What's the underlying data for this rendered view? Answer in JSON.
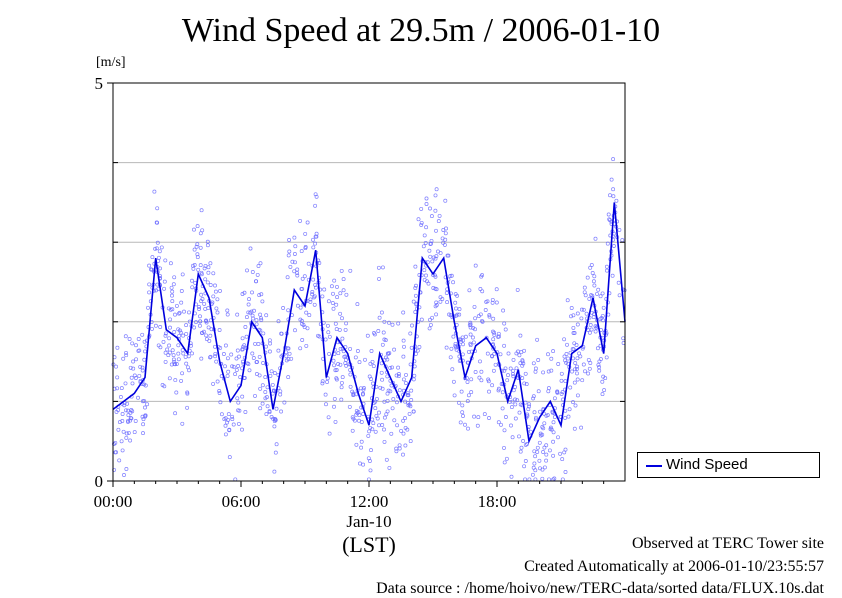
{
  "chart_data": {
    "type": "line",
    "title": "Wind Speed at 29.5m / 2006-01-10",
    "ylabel": "[m/s]",
    "xlabel": "(LST)",
    "x_date_label": "Jan-10",
    "ylim": [
      0,
      5
    ],
    "xlim_hours": [
      0,
      24
    ],
    "yticks": [
      "0",
      "5"
    ],
    "xticks": [
      "00:00",
      "06:00",
      "12:00",
      "18:00"
    ],
    "grid": true,
    "legend_position": "bottom-right, outside plot",
    "colors": {
      "line": "#0000dd",
      "points": "#6a6aff"
    },
    "series": [
      {
        "name": "Wind Speed",
        "x": [
          0,
          0.5,
          1,
          1.5,
          2,
          2.5,
          3,
          3.5,
          4,
          4.5,
          5,
          5.5,
          6,
          6.5,
          7,
          7.5,
          8,
          8.5,
          9,
          9.5,
          10,
          10.5,
          11,
          11.5,
          12,
          12.5,
          13,
          13.5,
          14,
          14.5,
          15,
          15.5,
          16,
          16.5,
          17,
          17.5,
          18,
          18.5,
          19,
          19.5,
          20,
          20.5,
          21,
          21.5,
          22,
          22.5,
          23,
          23.5,
          24
        ],
        "y": [
          0.9,
          1.0,
          1.1,
          1.3,
          2.8,
          1.9,
          1.8,
          1.6,
          2.6,
          2.3,
          1.5,
          1.0,
          1.2,
          2.0,
          1.8,
          0.9,
          1.6,
          2.4,
          2.2,
          2.9,
          1.3,
          1.8,
          1.6,
          1.1,
          0.7,
          1.6,
          1.3,
          1.0,
          1.3,
          2.8,
          2.6,
          2.8,
          2.0,
          1.3,
          1.7,
          1.8,
          1.6,
          1.0,
          1.4,
          0.5,
          0.8,
          1.0,
          0.7,
          1.6,
          1.7,
          2.3,
          1.6,
          3.5,
          2.0
        ]
      }
    ]
  },
  "footer": {
    "line1": "Observed at TERC Tower site",
    "line2": "Created Automatically at 2006-01-10/23:55:57",
    "line3": "Data source : /home/hoivo/new/TERC-data/sorted  data/FLUX.10s.dat"
  }
}
